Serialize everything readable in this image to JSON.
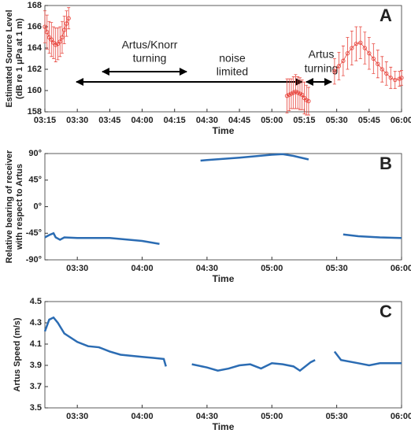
{
  "chart_data": [
    {
      "type": "errorbar",
      "panel_label": "A",
      "xlabel": "Time",
      "ylabel": [
        "Estimated Source Level",
        "(dB re 1 μPa at 1 m)"
      ],
      "color": "#e8473f",
      "xlim": [
        "03:15",
        "06:00"
      ],
      "xticks": [
        "03:15",
        "03:30",
        "03:45",
        "04:00",
        "04:15",
        "04:30",
        "04:45",
        "05:00",
        "05:15",
        "05:30",
        "05:45",
        "06:00"
      ],
      "ylim": [
        158,
        168
      ],
      "yticks": [
        158,
        160,
        162,
        164,
        166,
        168
      ],
      "annotations": [
        [
          "Artus/Knorr",
          "turning"
        ],
        [
          "noise",
          "limited"
        ],
        [
          "Artus",
          "turning"
        ]
      ],
      "series": [
        {
          "x": [
            "03:15",
            "03:16",
            "03:17",
            "03:18",
            "03:19",
            "03:20",
            "03:21",
            "03:22",
            "03:23",
            "03:24",
            "03:25",
            "03:26"
          ],
          "values": [
            166,
            165.5,
            165,
            164.8,
            164.5,
            164.3,
            164.4,
            164.6,
            165,
            165.7,
            166.3,
            166.8
          ],
          "errors": [
            1.5,
            1.6,
            1.5,
            1.6,
            1.5,
            1.6,
            1.5,
            1.4,
            1.5,
            1.3,
            1.2,
            1.0
          ]
        },
        {
          "x": [
            "05:07",
            "05:08",
            "05:09",
            "05:10",
            "05:11",
            "05:12",
            "05:13",
            "05:14",
            "05:15",
            "05:16",
            "05:17"
          ],
          "values": [
            159.5,
            159.6,
            159.7,
            159.8,
            159.9,
            159.8,
            159.7,
            159.6,
            159.3,
            159.1,
            159.0
          ],
          "errors": [
            1.6,
            1.5,
            1.4,
            1.5,
            1.6,
            1.5,
            1.5,
            1.4,
            1.5,
            1.4,
            1.3
          ]
        },
        {
          "x": [
            "05:29",
            "05:31",
            "05:33",
            "05:35",
            "05:37",
            "05:39",
            "05:41",
            "05:43",
            "05:45",
            "05:47",
            "05:49",
            "05:51",
            "05:53",
            "05:55",
            "05:57",
            "05:59",
            "06:00"
          ],
          "values": [
            161.8,
            162.3,
            162.8,
            163.5,
            164,
            164.4,
            164.5,
            164,
            163.5,
            163,
            162.5,
            162,
            161.6,
            161.2,
            161,
            161.1,
            161.2
          ],
          "errors": [
            1.2,
            1.3,
            1.4,
            1.5,
            1.6,
            1.6,
            1.5,
            1.5,
            1.5,
            1.4,
            1.3,
            1.2,
            1.1,
            1.0,
            0.8,
            0.7,
            0.7
          ]
        }
      ]
    },
    {
      "type": "line",
      "panel_label": "B",
      "xlabel": "Time",
      "ylabel": [
        "Relative bearing of receiver",
        "with respect to Artus"
      ],
      "color": "#2b6cb3",
      "xlim": [
        "03:15",
        "06:00"
      ],
      "xticks": [
        "03:30",
        "04:00",
        "04:30",
        "05:00",
        "05:30",
        "06:00"
      ],
      "ylim": [
        -90,
        90
      ],
      "yticks": [
        {
          "value": -90,
          "label": "-90°"
        },
        {
          "value": -45,
          "label": "-45°"
        },
        {
          "value": 0,
          "label": "0°"
        },
        {
          "value": 45,
          "label": "45°"
        },
        {
          "value": 90,
          "label": "90°"
        }
      ],
      "series": [
        {
          "x": [
            "03:15",
            "03:17",
            "03:19",
            "03:20",
            "03:22",
            "03:24",
            "03:30",
            "03:45",
            "04:00",
            "04:08"
          ],
          "values": [
            -52,
            -48,
            -45,
            -52,
            -56,
            -52,
            -53,
            -53,
            -58,
            -63
          ]
        },
        {
          "x": [
            "04:27",
            "04:30",
            "04:45",
            "05:00",
            "05:05",
            "05:10",
            "05:17"
          ],
          "values": [
            78,
            79,
            83,
            88,
            89,
            86,
            80
          ]
        },
        {
          "x": [
            "05:33",
            "05:40",
            "05:50",
            "06:00"
          ],
          "values": [
            -47,
            -50,
            -52,
            -53
          ]
        }
      ]
    },
    {
      "type": "line",
      "panel_label": "C",
      "xlabel": "Time",
      "ylabel": [
        "Artus Speed (m/s)"
      ],
      "color": "#2b6cb3",
      "xlim": [
        "03:15",
        "06:00"
      ],
      "xticks": [
        "03:30",
        "04:00",
        "04:30",
        "05:00",
        "05:30",
        "06:00"
      ],
      "ylim": [
        3.5,
        4.5
      ],
      "yticks": [
        3.5,
        3.7,
        3.9,
        4.1,
        4.3,
        4.5
      ],
      "series": [
        {
          "x": [
            "03:15",
            "03:17",
            "03:19",
            "03:21",
            "03:24",
            "03:30",
            "03:35",
            "03:40",
            "03:45",
            "03:50",
            "04:00",
            "04:05",
            "04:10",
            "04:11"
          ],
          "values": [
            4.22,
            4.33,
            4.35,
            4.3,
            4.2,
            4.12,
            4.08,
            4.07,
            4.03,
            4.0,
            3.98,
            3.97,
            3.96,
            3.89
          ]
        },
        {
          "x": [
            "04:23",
            "04:30",
            "04:35",
            "04:40",
            "04:45",
            "04:50",
            "04:55",
            "05:00",
            "05:05",
            "05:10",
            "05:13",
            "05:18",
            "05:20"
          ],
          "values": [
            3.91,
            3.88,
            3.85,
            3.87,
            3.9,
            3.91,
            3.87,
            3.92,
            3.91,
            3.89,
            3.85,
            3.93,
            3.95
          ]
        },
        {
          "x": [
            "05:29",
            "05:32",
            "05:40",
            "05:45",
            "05:50",
            "06:00"
          ],
          "values": [
            4.03,
            3.95,
            3.92,
            3.9,
            3.92,
            3.92
          ]
        }
      ]
    }
  ]
}
